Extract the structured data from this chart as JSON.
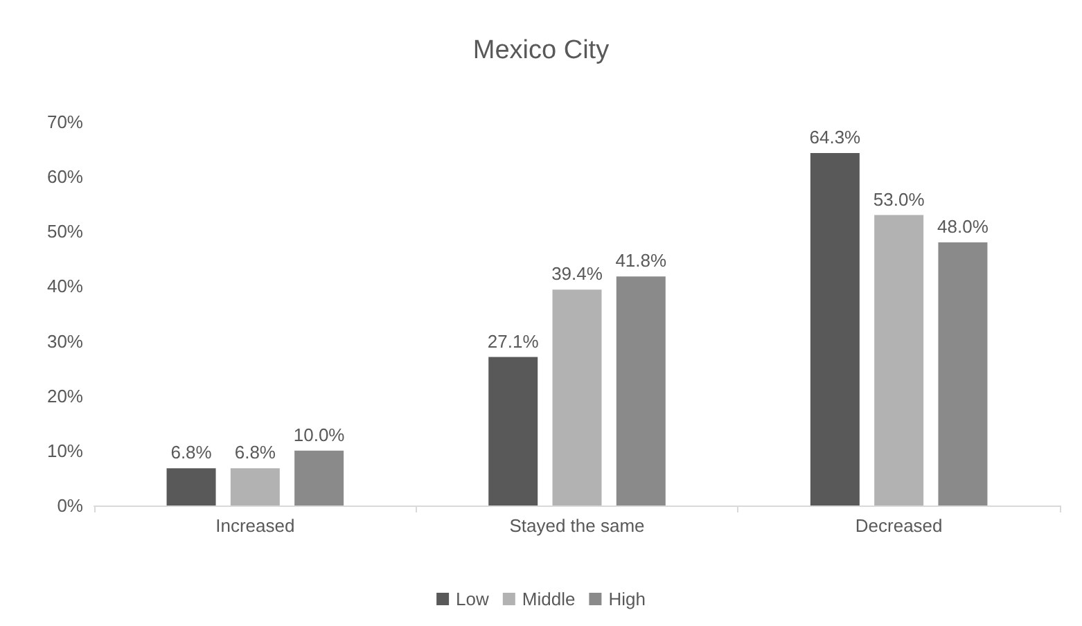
{
  "chart_data": {
    "type": "bar",
    "title": "Mexico City",
    "categories": [
      "Increased",
      "Stayed the same",
      "Decreased"
    ],
    "series": [
      {
        "name": "Low",
        "color": "#595959",
        "values": [
          6.8,
          27.1,
          64.3
        ],
        "value_labels": [
          "6.8%",
          "27.1%",
          "64.3%"
        ]
      },
      {
        "name": "Middle",
        "color": "#b2b2b2",
        "values": [
          6.8,
          39.4,
          53.0
        ],
        "value_labels": [
          "6.8%",
          "39.4%",
          "53.0%"
        ]
      },
      {
        "name": "High",
        "color": "#8a8a8a",
        "values": [
          10.0,
          41.8,
          48.0
        ],
        "value_labels": [
          "10.0%",
          "41.8%",
          "48.0%"
        ]
      }
    ],
    "ylim": [
      0,
      70
    ],
    "yticks": [
      {
        "value": 0,
        "label": "0%"
      },
      {
        "value": 10,
        "label": "10%"
      },
      {
        "value": 20,
        "label": "20%"
      },
      {
        "value": 30,
        "label": "30%"
      },
      {
        "value": 40,
        "label": "40%"
      },
      {
        "value": 50,
        "label": "50%"
      },
      {
        "value": 60,
        "label": "60%"
      },
      {
        "value": 70,
        "label": "70%"
      }
    ],
    "grid": false,
    "legend": "bottom"
  }
}
